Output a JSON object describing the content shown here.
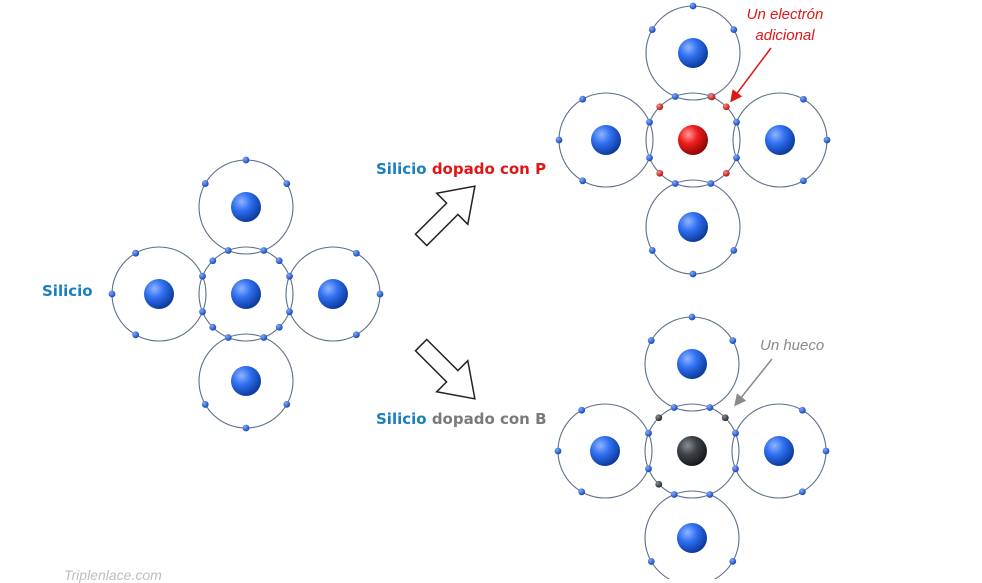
{
  "labels": {
    "silicio": "Silicio",
    "p_prefix": "Silicio",
    "p_suffix": "dopado con P",
    "b_prefix": "Silicio",
    "b_suffix": "dopado con B"
  },
  "annotations": {
    "extra_electron_line1": "Un electrón",
    "extra_electron_line2": "adicional",
    "hole": "Un hueco"
  },
  "watermark": "Triplenlace.com",
  "colors": {
    "silicon_atom": "#1a5fd6",
    "phosphorus_atom": "#e01010",
    "boron_atom": "#3a3d42",
    "electron": "#1f5fd4",
    "p_electron": "#d81b1b",
    "b_electron": "#33363b",
    "orbit": "#5b6f8a",
    "arrow": "#222222",
    "silicio_text": "#1a7fc1",
    "p_text": "#e01515",
    "b_text": "#7a7a7a"
  }
}
